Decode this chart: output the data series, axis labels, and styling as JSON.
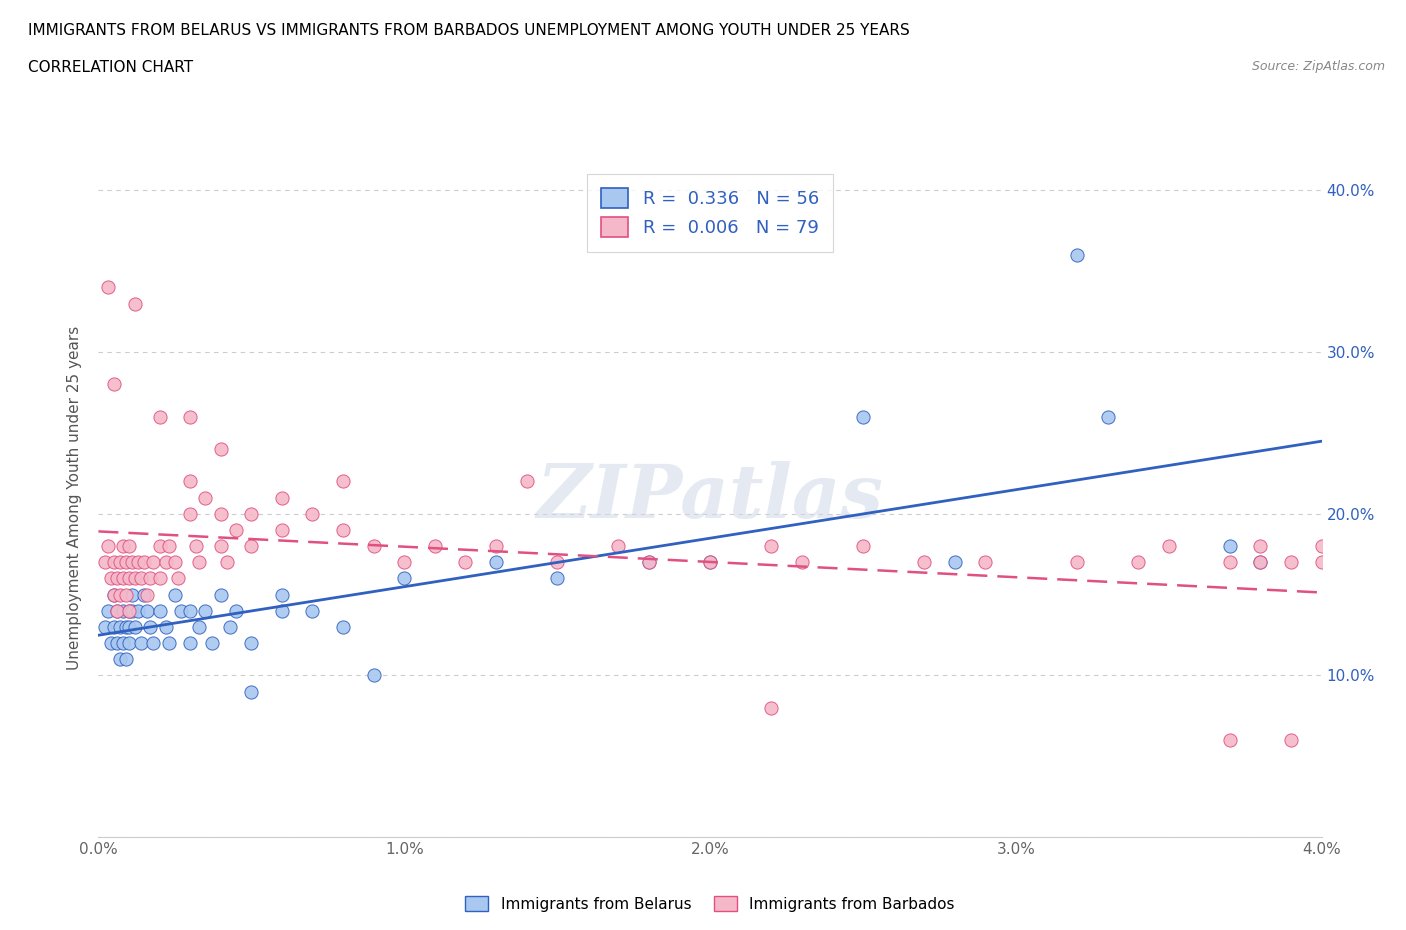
{
  "title_line1": "IMMIGRANTS FROM BELARUS VS IMMIGRANTS FROM BARBADOS UNEMPLOYMENT AMONG YOUTH UNDER 25 YEARS",
  "title_line2": "CORRELATION CHART",
  "source_text": "Source: ZipAtlas.com",
  "ylabel": "Unemployment Among Youth under 25 years",
  "watermark": "ZIPatlas",
  "legend_r1": "R =  0.336   N = 56",
  "legend_r2": "R =  0.006   N = 79",
  "color_belarus": "#a8c8f0",
  "color_barbados": "#f5b8c8",
  "line_color_belarus": "#3060c0",
  "line_color_barbados": "#e05080",
  "xlim": [
    0.0,
    0.04
  ],
  "ylim": [
    0.0,
    0.42
  ],
  "xticks": [
    0.0,
    0.01,
    0.02,
    0.03,
    0.04
  ],
  "xtick_labels": [
    "0.0%",
    "1.0%",
    "2.0%",
    "3.0%",
    "4.0%"
  ],
  "yticks": [
    0.0,
    0.1,
    0.2,
    0.3,
    0.4
  ],
  "ytick_labels_right": [
    "",
    "10.0%",
    "20.0%",
    "30.0%",
    "40.0%"
  ],
  "background_color": "#ffffff",
  "grid_color": "#cccccc",
  "belarus_x": [
    0.0002,
    0.0003,
    0.0004,
    0.0005,
    0.0005,
    0.0006,
    0.0006,
    0.0007,
    0.0007,
    0.0008,
    0.0008,
    0.0009,
    0.0009,
    0.001,
    0.001,
    0.001,
    0.0011,
    0.0011,
    0.0012,
    0.0013,
    0.0014,
    0.0015,
    0.0016,
    0.0017,
    0.0018,
    0.002,
    0.0022,
    0.0023,
    0.0025,
    0.0027,
    0.003,
    0.003,
    0.0033,
    0.0035,
    0.0037,
    0.004,
    0.0043,
    0.0045,
    0.005,
    0.005,
    0.006,
    0.006,
    0.007,
    0.008,
    0.009,
    0.01,
    0.013,
    0.015,
    0.018,
    0.02,
    0.025,
    0.028,
    0.032,
    0.033,
    0.037,
    0.038
  ],
  "belarus_y": [
    0.13,
    0.14,
    0.12,
    0.15,
    0.13,
    0.14,
    0.12,
    0.13,
    0.11,
    0.14,
    0.12,
    0.13,
    0.11,
    0.14,
    0.12,
    0.13,
    0.14,
    0.15,
    0.13,
    0.14,
    0.12,
    0.15,
    0.14,
    0.13,
    0.12,
    0.14,
    0.13,
    0.12,
    0.15,
    0.14,
    0.14,
    0.12,
    0.13,
    0.14,
    0.12,
    0.15,
    0.13,
    0.14,
    0.12,
    0.09,
    0.15,
    0.14,
    0.14,
    0.13,
    0.1,
    0.16,
    0.17,
    0.16,
    0.17,
    0.17,
    0.26,
    0.17,
    0.36,
    0.26,
    0.18,
    0.17
  ],
  "barbados_x": [
    0.0002,
    0.0003,
    0.0004,
    0.0005,
    0.0005,
    0.0006,
    0.0006,
    0.0007,
    0.0007,
    0.0008,
    0.0008,
    0.0009,
    0.0009,
    0.001,
    0.001,
    0.001,
    0.0011,
    0.0012,
    0.0013,
    0.0014,
    0.0015,
    0.0016,
    0.0017,
    0.0018,
    0.002,
    0.002,
    0.0022,
    0.0023,
    0.0025,
    0.0026,
    0.003,
    0.003,
    0.0032,
    0.0033,
    0.0035,
    0.004,
    0.004,
    0.0042,
    0.0045,
    0.005,
    0.005,
    0.006,
    0.006,
    0.007,
    0.008,
    0.009,
    0.01,
    0.011,
    0.012,
    0.013,
    0.015,
    0.017,
    0.018,
    0.02,
    0.022,
    0.023,
    0.025,
    0.027,
    0.029,
    0.032,
    0.034,
    0.035,
    0.037,
    0.038,
    0.038,
    0.039,
    0.04,
    0.04,
    0.0003,
    0.0005,
    0.0012,
    0.002,
    0.003,
    0.004,
    0.008,
    0.014,
    0.022,
    0.037,
    0.039
  ],
  "barbados_y": [
    0.17,
    0.18,
    0.16,
    0.17,
    0.15,
    0.16,
    0.14,
    0.17,
    0.15,
    0.18,
    0.16,
    0.17,
    0.15,
    0.18,
    0.16,
    0.14,
    0.17,
    0.16,
    0.17,
    0.16,
    0.17,
    0.15,
    0.16,
    0.17,
    0.18,
    0.16,
    0.17,
    0.18,
    0.17,
    0.16,
    0.22,
    0.2,
    0.18,
    0.17,
    0.21,
    0.2,
    0.18,
    0.17,
    0.19,
    0.18,
    0.2,
    0.19,
    0.21,
    0.2,
    0.19,
    0.18,
    0.17,
    0.18,
    0.17,
    0.18,
    0.17,
    0.18,
    0.17,
    0.17,
    0.18,
    0.17,
    0.18,
    0.17,
    0.17,
    0.17,
    0.17,
    0.18,
    0.17,
    0.18,
    0.17,
    0.17,
    0.17,
    0.18,
    0.34,
    0.28,
    0.33,
    0.26,
    0.26,
    0.24,
    0.22,
    0.22,
    0.08,
    0.06,
    0.06
  ]
}
